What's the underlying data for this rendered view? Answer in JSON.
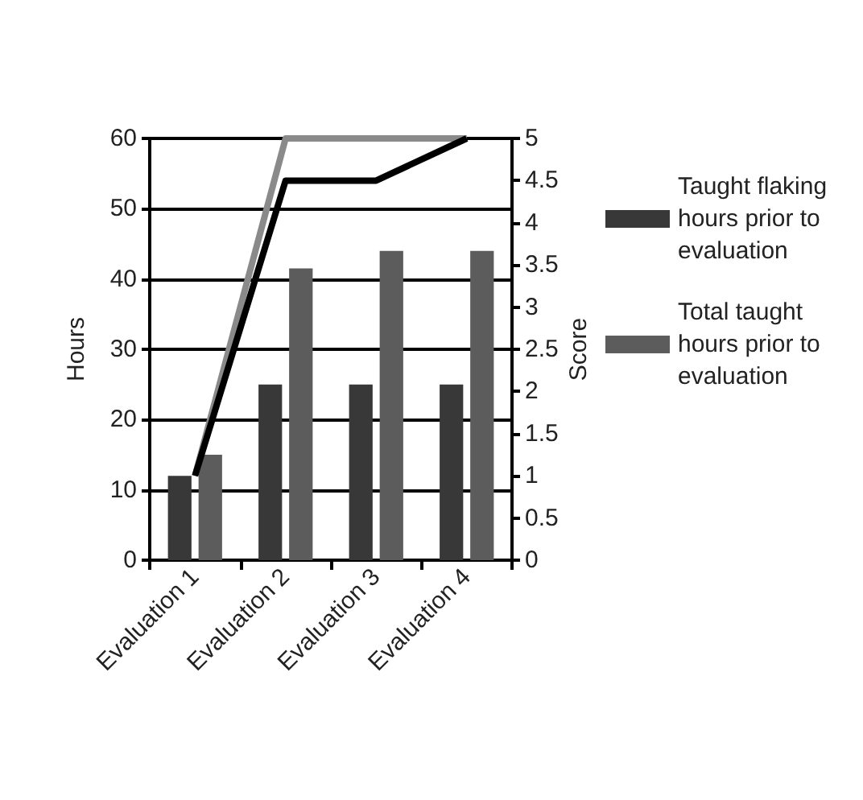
{
  "chart_data": {
    "type": "bar",
    "ylabel": "Hours",
    "y2label": "Score",
    "categories": [
      "Evaluation 1",
      "Evaluation 2",
      "Evaluation 3",
      "Evaluation 4"
    ],
    "series": [
      {
        "name": "Taught flaking hours prior to evaluation",
        "color": "#383838",
        "values": [
          12,
          25,
          25,
          25
        ]
      },
      {
        "name": "Total taught hours prior to evaluation",
        "color": "#5c5c5c",
        "values": [
          15,
          41.5,
          44,
          44
        ]
      },
      {
        "type": "line",
        "axis": "y2",
        "color": "#8a8a8a",
        "values": [
          1,
          5,
          5,
          5
        ]
      },
      {
        "type": "line",
        "axis": "y2",
        "color": "#000000",
        "values": [
          1,
          4.5,
          4.5,
          5
        ]
      }
    ],
    "ylim": [
      0,
      60
    ],
    "yticks": [
      0,
      10,
      20,
      30,
      40,
      50,
      60
    ],
    "y2lim": [
      0,
      5
    ],
    "y2ticks": [
      0,
      0.5,
      1,
      1.5,
      2,
      2.5,
      3,
      3.5,
      4,
      4.5,
      5
    ],
    "grid": "y",
    "legend": "right",
    "marker": "none"
  }
}
